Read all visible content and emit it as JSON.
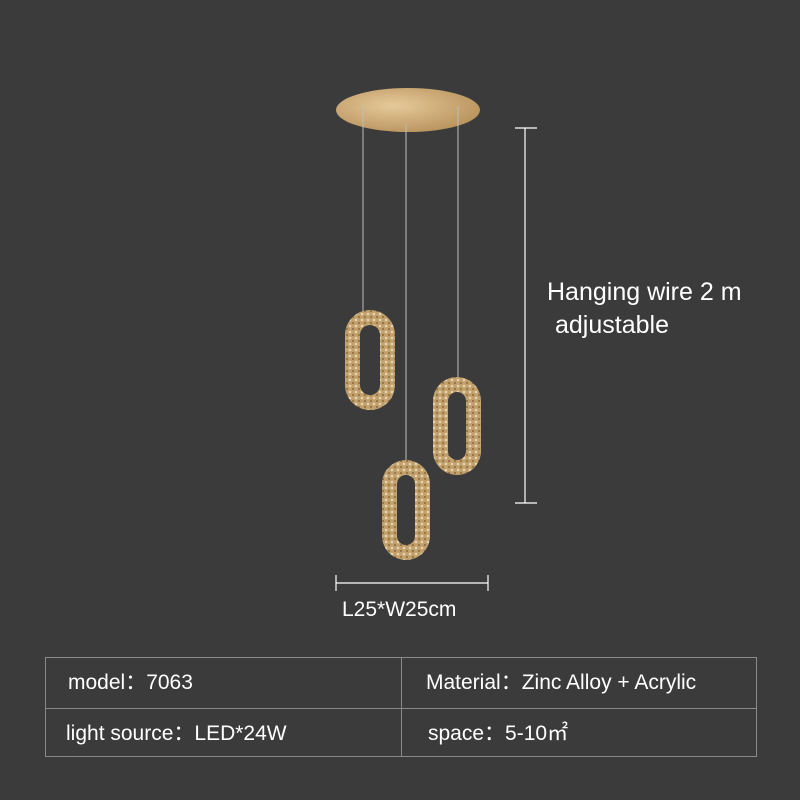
{
  "annotations": {
    "wire_line1": "Hanging wire 2 m",
    "wire_line2": "adjustable",
    "dimensions": "L25*W25cm"
  },
  "specs": [
    {
      "label": "model：",
      "value": "7063"
    },
    {
      "label": "Material：",
      "value": "Zinc Alloy + Acrylic"
    },
    {
      "label": "light source：",
      "value": "LED*24W"
    },
    {
      "label": "space：",
      "value": "5-10㎡"
    }
  ],
  "colors": {
    "background": "#3b3b3b",
    "gold": "#c9a36a"
  }
}
